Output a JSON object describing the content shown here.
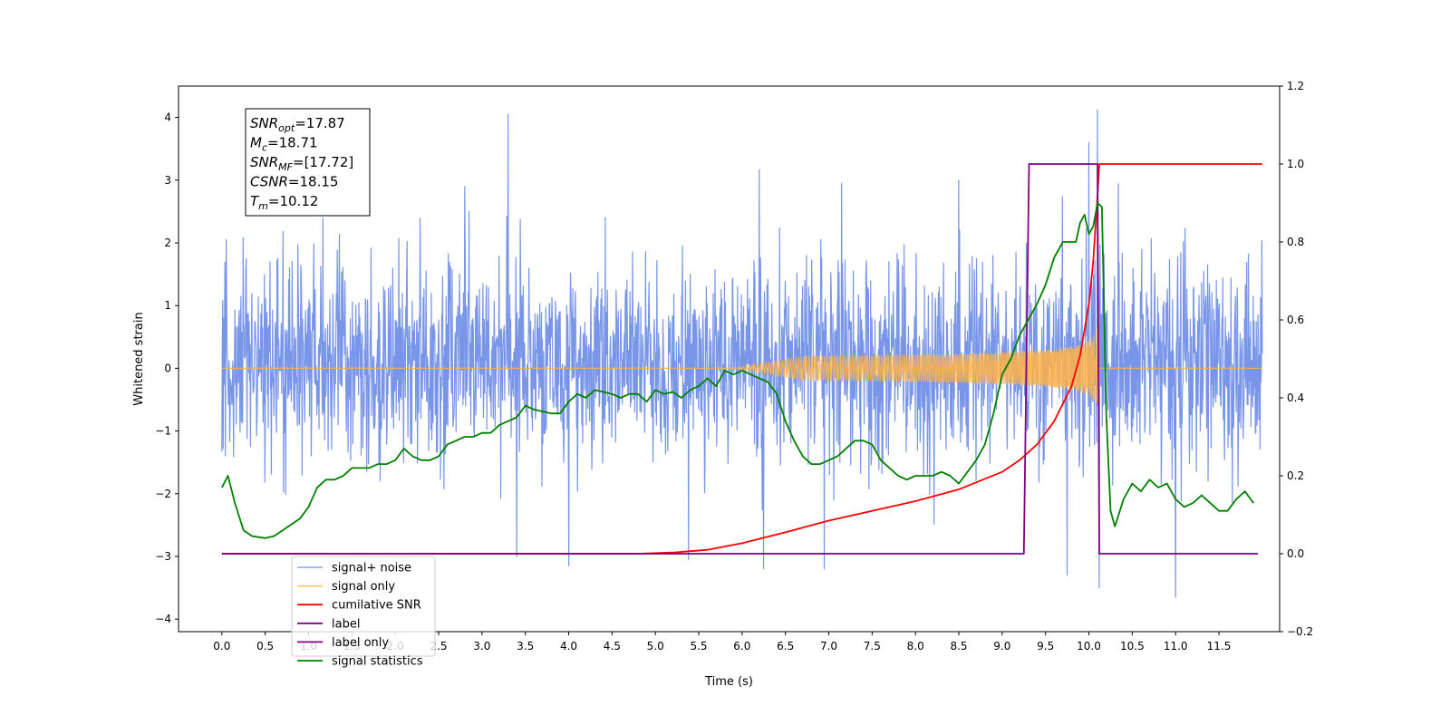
{
  "chart_data": {
    "type": "line",
    "title": "",
    "xlabel": "Time (s)",
    "ylabel": "Whitened strain",
    "y2label": "",
    "xlim": [
      -0.5,
      12.2
    ],
    "ylim": [
      -4.2,
      4.5
    ],
    "y2lim": [
      -0.2,
      1.2
    ],
    "x_ticks": [
      0.0,
      0.5,
      1.0,
      1.5,
      2.0,
      2.5,
      3.0,
      3.5,
      4.0,
      4.5,
      5.0,
      5.5,
      6.0,
      6.5,
      7.0,
      7.5,
      8.0,
      8.5,
      9.0,
      9.5,
      10.0,
      10.5,
      11.0,
      11.5
    ],
    "x_tick_labels": [
      "0.0",
      "0.5",
      "1.0",
      "1.5",
      "2.0",
      "2.5",
      "3.0",
      "3.5",
      "4.0",
      "4.5",
      "5.0",
      "5.5",
      "6.0",
      "6.5",
      "7.0",
      "7.5",
      "8.0",
      "8.5",
      "9.0",
      "9.5",
      "10.0",
      "10.5",
      "11.0",
      "11.5"
    ],
    "y_ticks": [
      -4,
      -3,
      -2,
      -1,
      0,
      1,
      2,
      3,
      4
    ],
    "y_tick_labels": [
      "−4",
      "−3",
      "−2",
      "−1",
      "0",
      "1",
      "2",
      "3",
      "4"
    ],
    "y2_ticks": [
      -0.2,
      0.0,
      0.2,
      0.4,
      0.6,
      0.8,
      1.0,
      1.2
    ],
    "y2_tick_labels": [
      "−0.2",
      "0.0",
      "0.2",
      "0.4",
      "0.6",
      "0.8",
      "1.0",
      "1.2"
    ],
    "grid": false,
    "legend_position": "lower-left",
    "annotation": [
      {
        "symbol": "SNR",
        "sub": "opt",
        "value": "=17.87"
      },
      {
        "symbol": "M",
        "sub": "c",
        "value": "=18.71"
      },
      {
        "symbol": "SNR",
        "sub": "MF",
        "value": "=[17.72]"
      },
      {
        "symbol": "CSNR",
        "sub": "",
        "value": "=18.15"
      },
      {
        "symbol": "T",
        "sub": "m",
        "value": "=10.12"
      }
    ],
    "series": [
      {
        "name": "signal+ noise",
        "axis": "left",
        "color": "#7895e8",
        "style": "noise",
        "x_range": [
          0.0,
          12.0
        ],
        "typical_band": [
          -1.6,
          1.8
        ],
        "peak_range": [
          -3.65,
          4.12
        ],
        "spikes": [
          {
            "x": 3.3,
            "y": 4.05
          },
          {
            "x": 10.1,
            "y": 4.12
          },
          {
            "x": 10.0,
            "y": 3.6
          },
          {
            "x": 6.2,
            "y": 3.17
          },
          {
            "x": 11.0,
            "y": -3.65
          },
          {
            "x": 10.12,
            "y": -3.5
          },
          {
            "x": 4.0,
            "y": -3.15
          },
          {
            "x": 6.25,
            "y": -3.2
          },
          {
            "x": 6.95,
            "y": -3.2
          },
          {
            "x": 5.38,
            "y": -3.05
          },
          {
            "x": 3.4,
            "y": -3.0
          },
          {
            "x": 9.75,
            "y": -3.3
          },
          {
            "x": 8.5,
            "y": 3.0
          },
          {
            "x": 7.15,
            "y": 2.95
          },
          {
            "x": 2.8,
            "y": 2.9
          }
        ]
      },
      {
        "name": "signal only",
        "axis": "left",
        "color": "#ffb347",
        "style": "chirp",
        "x_range": [
          0.0,
          12.0
        ],
        "merger_time": 10.12,
        "peak_amplitude": 1.9
      },
      {
        "name": "cumilative SNR",
        "axis": "right",
        "color": "#ff0000",
        "x": [
          0.0,
          4.8,
          5.2,
          5.6,
          6.0,
          6.5,
          7.0,
          7.5,
          8.0,
          8.5,
          9.0,
          9.2,
          9.4,
          9.6,
          9.8,
          9.9,
          10.0,
          10.05,
          10.1,
          10.12,
          12.0
        ],
        "y": [
          0.0,
          0.0,
          0.003,
          0.01,
          0.027,
          0.055,
          0.085,
          0.11,
          0.135,
          0.165,
          0.21,
          0.24,
          0.28,
          0.34,
          0.43,
          0.51,
          0.64,
          0.75,
          0.92,
          1.0,
          1.0
        ]
      },
      {
        "name": "label",
        "axis": "right",
        "color": "#800080",
        "x": [
          0.0,
          9.25,
          9.31,
          10.1,
          10.12,
          11.95
        ],
        "y": [
          0.0,
          0.0,
          1.0,
          1.0,
          0.0,
          0.0
        ]
      },
      {
        "name": "label only",
        "axis": "right",
        "color": "#800080",
        "hidden_in_plot": true,
        "x": [],
        "y": []
      },
      {
        "name": "signal statistics",
        "axis": "right",
        "color": "#008000",
        "x": [
          0.0,
          0.07,
          0.15,
          0.25,
          0.35,
          0.5,
          0.6,
          0.7,
          0.8,
          0.9,
          1.0,
          1.1,
          1.2,
          1.3,
          1.4,
          1.5,
          1.6,
          1.7,
          1.8,
          1.9,
          2.0,
          2.1,
          2.2,
          2.3,
          2.4,
          2.5,
          2.6,
          2.7,
          2.8,
          2.9,
          3.0,
          3.1,
          3.2,
          3.3,
          3.4,
          3.5,
          3.6,
          3.7,
          3.8,
          3.9,
          4.0,
          4.1,
          4.2,
          4.3,
          4.4,
          4.5,
          4.6,
          4.7,
          4.8,
          4.9,
          5.0,
          5.1,
          5.2,
          5.3,
          5.4,
          5.5,
          5.6,
          5.7,
          5.8,
          5.9,
          6.0,
          6.1,
          6.2,
          6.3,
          6.4,
          6.5,
          6.6,
          6.7,
          6.8,
          6.9,
          7.0,
          7.1,
          7.2,
          7.3,
          7.4,
          7.5,
          7.6,
          7.7,
          7.8,
          7.9,
          8.0,
          8.1,
          8.2,
          8.3,
          8.4,
          8.5,
          8.6,
          8.7,
          8.8,
          8.9,
          9.0,
          9.1,
          9.2,
          9.3,
          9.4,
          9.5,
          9.6,
          9.7,
          9.8,
          9.85,
          9.9,
          9.95,
          10.0,
          10.05,
          10.1,
          10.15,
          10.2,
          10.25,
          10.3,
          10.4,
          10.5,
          10.6,
          10.7,
          10.8,
          10.9,
          11.0,
          11.1,
          11.2,
          11.3,
          11.4,
          11.5,
          11.6,
          11.7,
          11.8,
          11.9
        ],
        "y": [
          0.17,
          0.2,
          0.13,
          0.06,
          0.045,
          0.04,
          0.045,
          0.06,
          0.075,
          0.09,
          0.12,
          0.17,
          0.19,
          0.19,
          0.2,
          0.22,
          0.22,
          0.22,
          0.23,
          0.23,
          0.24,
          0.27,
          0.25,
          0.24,
          0.24,
          0.25,
          0.28,
          0.29,
          0.3,
          0.3,
          0.31,
          0.31,
          0.33,
          0.34,
          0.35,
          0.38,
          0.37,
          0.365,
          0.36,
          0.36,
          0.39,
          0.41,
          0.4,
          0.42,
          0.415,
          0.41,
          0.4,
          0.41,
          0.41,
          0.39,
          0.42,
          0.41,
          0.415,
          0.4,
          0.42,
          0.43,
          0.45,
          0.43,
          0.47,
          0.46,
          0.47,
          0.46,
          0.45,
          0.44,
          0.41,
          0.34,
          0.29,
          0.25,
          0.23,
          0.23,
          0.24,
          0.25,
          0.27,
          0.29,
          0.29,
          0.28,
          0.24,
          0.22,
          0.2,
          0.19,
          0.2,
          0.2,
          0.2,
          0.21,
          0.2,
          0.18,
          0.21,
          0.24,
          0.28,
          0.36,
          0.46,
          0.5,
          0.56,
          0.6,
          0.64,
          0.69,
          0.76,
          0.8,
          0.8,
          0.8,
          0.85,
          0.87,
          0.82,
          0.84,
          0.9,
          0.89,
          0.36,
          0.11,
          0.07,
          0.14,
          0.18,
          0.16,
          0.19,
          0.17,
          0.18,
          0.14,
          0.12,
          0.13,
          0.15,
          0.13,
          0.11,
          0.11,
          0.14,
          0.16,
          0.13
        ]
      }
    ]
  }
}
